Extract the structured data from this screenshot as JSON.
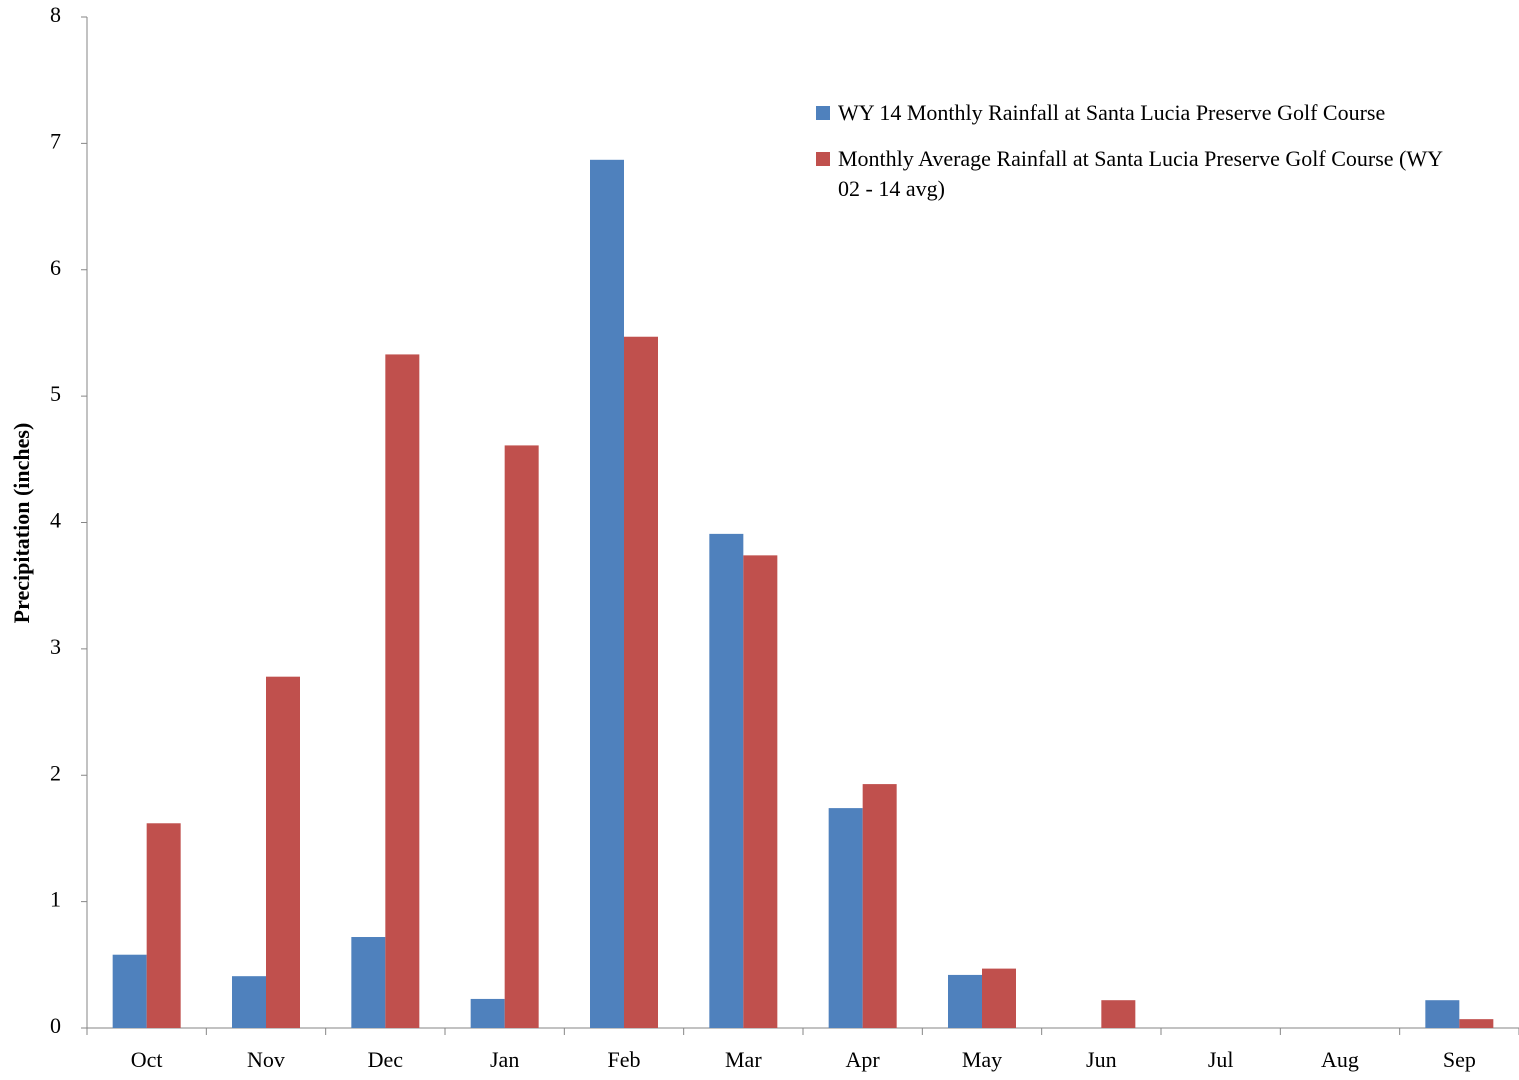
{
  "chart_data": {
    "type": "bar",
    "y_label": "Precipitation (inches)",
    "categories": [
      "Oct",
      "Nov",
      "Dec",
      "Jan",
      "Feb",
      "Mar",
      "Apr",
      "May",
      "Jun",
      "Jul",
      "Aug",
      "Sep"
    ],
    "series": [
      {
        "name": "WY 14 Monthly Rainfall at Santa Lucia Preserve Golf Course",
        "color": "#4f81bd",
        "values": [
          0.58,
          0.41,
          0.72,
          0.23,
          6.87,
          3.91,
          1.74,
          0.42,
          0,
          0,
          0,
          0.22
        ]
      },
      {
        "name": "Monthly Average Rainfall at Santa Lucia Preserve Golf Course (WY 02 - 14 avg)",
        "color": "#c0504d",
        "values": [
          1.62,
          2.78,
          5.33,
          4.61,
          5.47,
          3.74,
          1.93,
          0.47,
          0.22,
          0,
          0,
          0.07
        ]
      }
    ],
    "ylim": [
      0,
      8
    ],
    "yticks": [
      0,
      1,
      2,
      3,
      4,
      5,
      6,
      7,
      8
    ],
    "grid": false,
    "legend": "top-right"
  }
}
